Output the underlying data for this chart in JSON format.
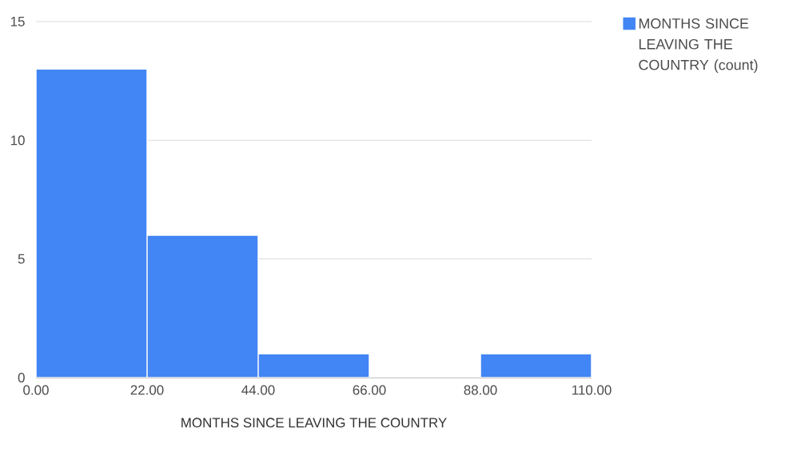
{
  "chart_data": {
    "type": "histogram",
    "xlabel": "MONTHS SINCE LEAVING THE COUNTRY",
    "bins": [
      0,
      22,
      44,
      66,
      88,
      110
    ],
    "series": [
      {
        "name": "MONTHS SINCE LEAVING THE COUNTRY (count)",
        "color": "#4285f4",
        "values": [
          13,
          6,
          1,
          0,
          1
        ]
      }
    ],
    "xlim": [
      0,
      110
    ],
    "xticks": [
      {
        "value": 0,
        "label": "0.00"
      },
      {
        "value": 22,
        "label": "22.00"
      },
      {
        "value": 44,
        "label": "44.00"
      },
      {
        "value": 66,
        "label": "66.00"
      },
      {
        "value": 88,
        "label": "88.00"
      },
      {
        "value": 110,
        "label": "110.00"
      }
    ],
    "ylim": [
      0,
      15
    ],
    "yticks": [
      0,
      5,
      10,
      15
    ],
    "grid": "y",
    "legend": "top right"
  }
}
